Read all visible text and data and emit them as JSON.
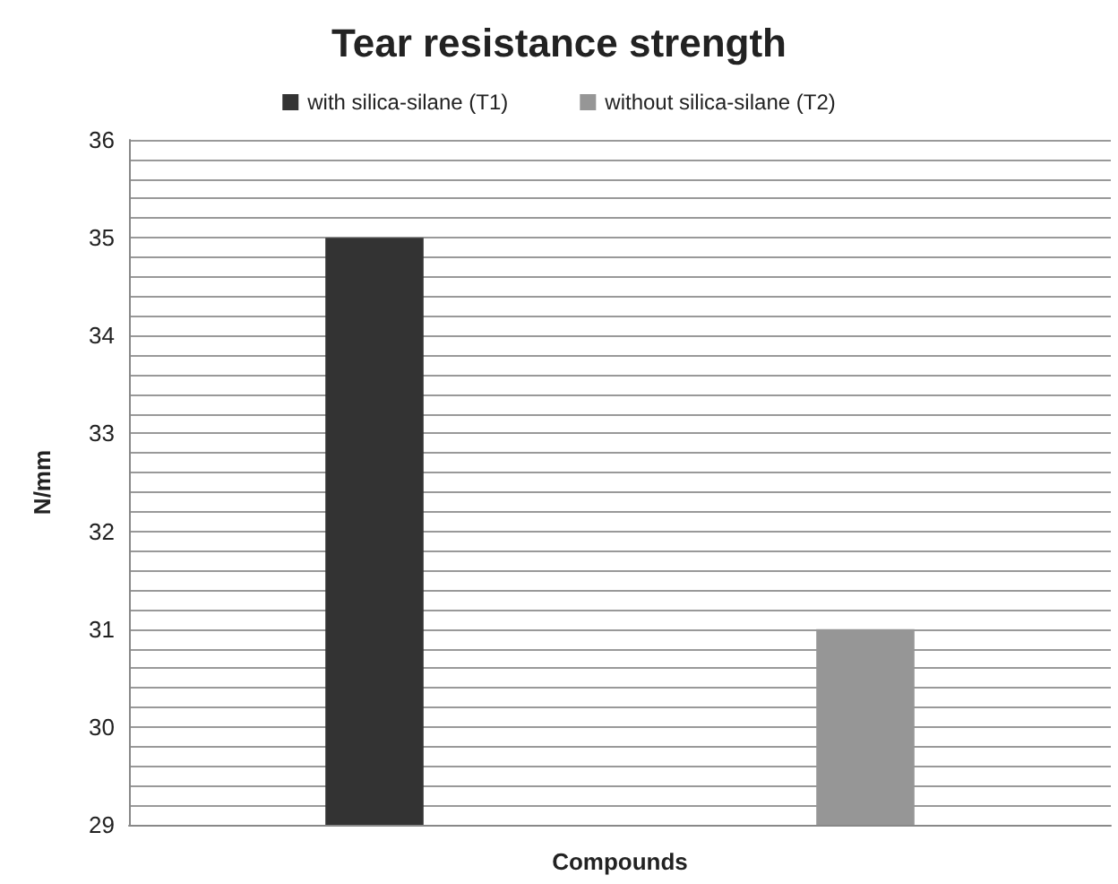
{
  "chart_data": {
    "type": "bar",
    "title": "Tear resistance strength",
    "xlabel": "Compounds",
    "ylabel": "N/mm",
    "categories": [
      null,
      null
    ],
    "series": [
      {
        "name": "with silica-silane (T1)",
        "color": "#333333",
        "values": [
          35,
          null
        ]
      },
      {
        "name": "without silica-silane (T2)",
        "color": "#969696",
        "values": [
          null,
          31
        ]
      }
    ],
    "ylim": [
      29,
      36
    ],
    "yticks": [
      29,
      {
        "value": 29.2,
        "label": null
      },
      {
        "value": 29.4,
        "label": null
      },
      {
        "value": 29.6,
        "label": null
      },
      {
        "value": 29.8,
        "label": null
      },
      30,
      {
        "value": 30.2,
        "label": null
      },
      {
        "value": 30.4,
        "label": null
      },
      {
        "value": 30.6,
        "label": null
      },
      {
        "value": 30.8,
        "label": null
      },
      31,
      {
        "value": 31.2,
        "label": null
      },
      {
        "value": 31.4,
        "label": null
      },
      {
        "value": 31.6,
        "label": null
      },
      {
        "value": 31.8,
        "label": null
      },
      32,
      {
        "value": 32.2,
        "label": null
      },
      {
        "value": 32.4,
        "label": null
      },
      {
        "value": 32.6,
        "label": null
      },
      {
        "value": 32.8,
        "label": null
      },
      33,
      {
        "value": 33.2,
        "label": null
      },
      {
        "value": 33.4,
        "label": null
      },
      {
        "value": 33.6,
        "label": null
      },
      {
        "value": 33.8,
        "label": null
      },
      34,
      {
        "value": 34.2,
        "label": null
      },
      {
        "value": 34.4,
        "label": null
      },
      {
        "value": 34.6,
        "label": null
      },
      {
        "value": 34.8,
        "label": null
      },
      35,
      {
        "value": 35.2,
        "label": null
      },
      {
        "value": 35.4,
        "label": null
      },
      {
        "value": 35.6,
        "label": null
      },
      {
        "value": 35.8,
        "label": null
      },
      36
    ],
    "grid": "y",
    "legend": "top"
  }
}
